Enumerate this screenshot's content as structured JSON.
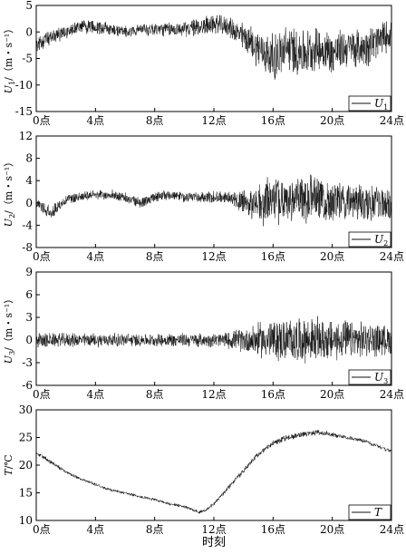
{
  "chart_data": [
    {
      "type": "line",
      "panel": "U1",
      "ylabel_var": "U",
      "ylabel_sub": "1",
      "ylabel_unit": "（m・s⁻¹）",
      "legend": {
        "var": "U",
        "sub": "1",
        "placement": "bottom-right"
      },
      "ylim": [
        -15,
        5
      ],
      "yticks": [
        "5",
        "0",
        "-5",
        "-10",
        "-15"
      ],
      "ytick_values": [
        5,
        0,
        -5,
        -10,
        -15
      ],
      "xticks": [
        "0点",
        "4点",
        "8点",
        "12点",
        "16点",
        "20点",
        "24点"
      ],
      "xlim": [
        0,
        24
      ],
      "series": [
        {
          "x": [
            0,
            1,
            2,
            3,
            4,
            5,
            6,
            7,
            8,
            9,
            10,
            11,
            12,
            13,
            14,
            15,
            16,
            17,
            18,
            19,
            20,
            21,
            22,
            23,
            24
          ],
          "values": [
            -2.5,
            -1,
            0,
            1,
            1,
            0.5,
            0,
            0.5,
            0.5,
            0.5,
            0.5,
            1,
            1.5,
            1,
            -1,
            -3,
            -5,
            -3,
            -4,
            -3,
            -4,
            -3,
            -3,
            -2,
            0
          ],
          "amplitude": [
            1.5,
            1.5,
            1.5,
            1.5,
            1.5,
            1.5,
            1.2,
            1.2,
            1.5,
            1.5,
            1.5,
            2,
            2,
            2,
            3,
            4,
            5,
            5,
            5,
            4.5,
            4.5,
            4,
            4,
            4,
            3
          ]
        }
      ]
    },
    {
      "type": "line",
      "panel": "U2",
      "ylabel_var": "U",
      "ylabel_sub": "2",
      "ylabel_unit": "（m・s⁻¹）",
      "legend": {
        "var": "U",
        "sub": "2",
        "placement": "bottom-right"
      },
      "ylim": [
        -8,
        12
      ],
      "yticks": [
        "12",
        "8",
        "4",
        "0",
        "-4",
        "-8"
      ],
      "ytick_values": [
        12,
        8,
        4,
        0,
        -4,
        -8
      ],
      "xticks": [
        "0点",
        "4点",
        "8点",
        "12点",
        "16点",
        "20点",
        "24点"
      ],
      "xlim": [
        0,
        24
      ],
      "series": [
        {
          "x": [
            0,
            1,
            2,
            3,
            4,
            5,
            6,
            7,
            8,
            9,
            10,
            11,
            12,
            13,
            14,
            15,
            16,
            17,
            18,
            19,
            20,
            21,
            22,
            23,
            24
          ],
          "values": [
            0,
            -1.5,
            0.5,
            1,
            1.5,
            1.5,
            1,
            0,
            1,
            1.5,
            1,
            1,
            1,
            1,
            0,
            -0.5,
            0.5,
            0,
            1,
            1,
            0,
            0.5,
            0,
            0,
            -1
          ],
          "amplitude": [
            1,
            1.5,
            1,
            1,
            1,
            1,
            1,
            1,
            1,
            1,
            1,
            1,
            1.2,
            1.2,
            2.5,
            4,
            5,
            4.5,
            5,
            4.5,
            4,
            4,
            4,
            3.5,
            3
          ]
        }
      ]
    },
    {
      "type": "line",
      "panel": "U3",
      "ylabel_var": "U",
      "ylabel_sub": "3",
      "ylabel_unit": "（m・s⁻¹）",
      "legend": {
        "var": "U",
        "sub": "3",
        "placement": "bottom-right"
      },
      "ylim": [
        -6,
        9
      ],
      "yticks": [
        "9",
        "6",
        "3",
        "0",
        "-3",
        "-6"
      ],
      "ytick_values": [
        9,
        6,
        3,
        0,
        -3,
        -6
      ],
      "xticks": [
        "0点",
        "4点",
        "8点",
        "12点",
        "16点",
        "20点",
        "24点"
      ],
      "xlim": [
        0,
        24
      ],
      "series": [
        {
          "x": [
            0,
            1,
            2,
            3,
            4,
            5,
            6,
            7,
            8,
            9,
            10,
            11,
            12,
            13,
            14,
            15,
            16,
            17,
            18,
            19,
            20,
            21,
            22,
            23,
            24
          ],
          "values": [
            0,
            0,
            0,
            0,
            0,
            0,
            0,
            0,
            0,
            0,
            0,
            0,
            0,
            0,
            0,
            0,
            0,
            0,
            0,
            0,
            0,
            0,
            0,
            0,
            0
          ],
          "amplitude": [
            1,
            1,
            1,
            1,
            1,
            1,
            1,
            0.9,
            0.9,
            1,
            1,
            1,
            1,
            1.2,
            1.8,
            2.5,
            3,
            3.2,
            3.2,
            3.2,
            3,
            2.8,
            2.6,
            2.4,
            2
          ]
        }
      ]
    },
    {
      "type": "line",
      "panel": "T",
      "ylabel_var": "T",
      "ylabel_unit": "/℃",
      "legend": {
        "var": "T",
        "placement": "bottom-right"
      },
      "ylim": [
        10,
        30
      ],
      "yticks": [
        "30",
        "25",
        "20",
        "15",
        "10"
      ],
      "ytick_values": [
        30,
        25,
        20,
        15,
        10
      ],
      "xticks": [
        "0点",
        "4点",
        "8点",
        "12点",
        "16点",
        "20点",
        "24点"
      ],
      "xlim": [
        0,
        24
      ],
      "xlabel": "时刻",
      "series": [
        {
          "x": [
            0,
            0.5,
            1,
            2,
            3,
            4,
            5,
            6,
            7,
            8,
            9,
            10,
            10.5,
            11,
            11.5,
            12,
            13,
            14,
            15,
            16,
            17,
            18,
            19,
            20,
            21,
            22,
            23,
            24
          ],
          "values": [
            22,
            21.5,
            20.5,
            18.8,
            17.5,
            16.5,
            15.5,
            15,
            14.3,
            13.8,
            13,
            12.5,
            12,
            11.5,
            12,
            13,
            16,
            19,
            22,
            24,
            25,
            25.5,
            26,
            25.5,
            25,
            24.5,
            23.5,
            22.5
          ],
          "amplitude": [
            0.4,
            0.4,
            0.4,
            0.4,
            0.3,
            0.3,
            0.3,
            0.3,
            0.3,
            0.3,
            0.3,
            0.3,
            0.3,
            0.3,
            0.3,
            0.4,
            0.4,
            0.5,
            0.5,
            0.5,
            0.6,
            0.6,
            0.6,
            0.5,
            0.4,
            0.4,
            0.4,
            0.4
          ]
        }
      ]
    }
  ]
}
